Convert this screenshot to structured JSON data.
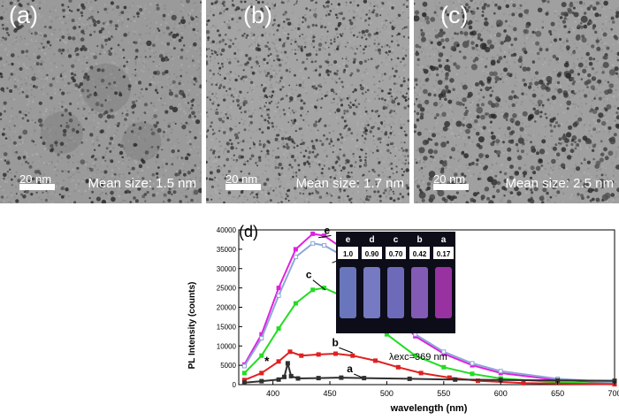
{
  "panels": [
    {
      "label": "(a)",
      "scale": "20 nm",
      "mean": "Mean size: 1.5 nm",
      "tone": "#9a9a9a"
    },
    {
      "label": "(b)",
      "scale": "20 nm",
      "mean": "Mean size: 1.7 nm",
      "tone": "#a4a4a4"
    },
    {
      "label": "(c)",
      "scale": "20 nm",
      "mean": "Mean size: 2.5 nm",
      "tone": "#a0a0a0"
    }
  ],
  "chart_data": {
    "type": "line",
    "panel_label": "(d)",
    "xlabel": "wavelength (nm)",
    "ylabel": "PL Intensity (counts)",
    "xlim": [
      370,
      700
    ],
    "ylim": [
      0,
      40000
    ],
    "xticks": [
      400,
      450,
      500,
      550,
      600,
      650,
      700
    ],
    "yticks": [
      0,
      5000,
      10000,
      15000,
      20000,
      25000,
      30000,
      35000,
      40000
    ],
    "annotation": "λexc=369 nm",
    "star": "*",
    "series": [
      {
        "name": "e",
        "color": "#e020e0",
        "x": [
          375,
          390,
          405,
          420,
          435,
          445,
          460,
          480,
          500,
          525,
          550,
          575,
          600,
          650,
          700
        ],
        "y": [
          5200,
          13000,
          25000,
          35000,
          39000,
          38500,
          35500,
          28000,
          20000,
          12500,
          8000,
          5000,
          3000,
          1200,
          500
        ]
      },
      {
        "name": "d",
        "color": "#8fa6d8",
        "x": [
          375,
          390,
          405,
          420,
          435,
          445,
          460,
          480,
          500,
          525,
          550,
          575,
          600,
          650,
          700
        ],
        "y": [
          4800,
          12000,
          23000,
          33000,
          36500,
          36000,
          33500,
          27500,
          20500,
          13000,
          8500,
          5500,
          3500,
          1500,
          600
        ]
      },
      {
        "name": "c",
        "color": "#22dd22",
        "x": [
          375,
          390,
          405,
          420,
          435,
          445,
          460,
          480,
          500,
          525,
          550,
          575,
          600,
          650,
          700
        ],
        "y": [
          3000,
          7500,
          14500,
          21000,
          24500,
          25000,
          23000,
          18000,
          13000,
          7500,
          4500,
          2800,
          1600,
          600,
          200
        ]
      },
      {
        "name": "b",
        "color": "#e02020",
        "x": [
          375,
          390,
          405,
          415,
          425,
          440,
          455,
          470,
          490,
          510,
          530,
          555,
          580,
          620,
          700
        ],
        "y": [
          1200,
          3000,
          6000,
          8500,
          7500,
          7800,
          8000,
          7500,
          6200,
          4500,
          3000,
          1800,
          1000,
          400,
          100
        ]
      },
      {
        "name": "a",
        "color": "#303030",
        "x": [
          375,
          390,
          405,
          410,
          413,
          416,
          422,
          440,
          460,
          480,
          520,
          560,
          600,
          650,
          700
        ],
        "y": [
          500,
          900,
          1300,
          2000,
          5500,
          2200,
          1600,
          1700,
          1800,
          1700,
          1500,
          1300,
          1200,
          1100,
          1000
        ]
      }
    ],
    "inset": {
      "labels": [
        "e",
        "d",
        "c",
        "b",
        "a"
      ],
      "values": [
        "1.0",
        "0.90",
        "0.70",
        "0.42",
        "0.17"
      ]
    }
  }
}
